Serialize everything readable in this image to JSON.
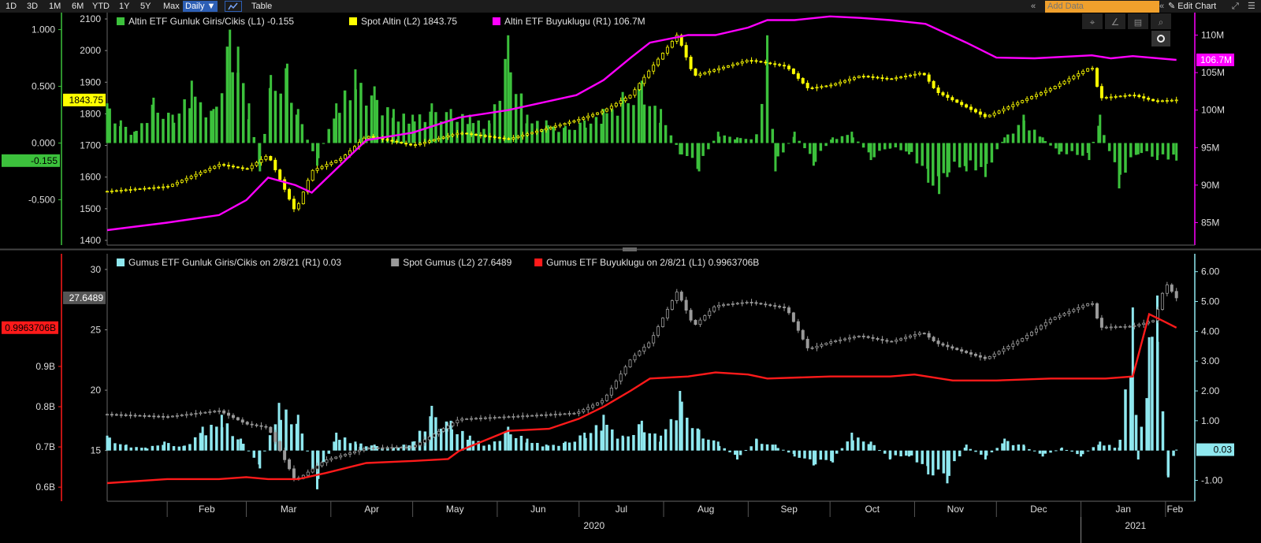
{
  "toolbar": {
    "periods": [
      "1D",
      "3D",
      "1M",
      "6M",
      "YTD",
      "1Y",
      "5Y",
      "Max"
    ],
    "frequency": "Daily ▼",
    "table_label": "Table",
    "add_data_placeholder": "Add Data",
    "edit_chart_label": "Edit Chart"
  },
  "colors": {
    "gold_flows": "#3cc13c",
    "spot_gold": "#ffff00",
    "gold_etf_size": "#ff00ff",
    "silver_flows": "#8fe8ef",
    "spot_silver": "#9a9a9a",
    "silver_etf_size": "#ff1a1a"
  },
  "chart_data": [
    {
      "type": "bar+candlestick+line",
      "panel": "top",
      "legend": [
        {
          "label": "Altin ETF Gunluk Giris/Cikis (L1) -0.155",
          "color": "#3cc13c"
        },
        {
          "label": "Spot Altin (L2) 1843.75",
          "color": "#ffff00"
        },
        {
          "label": "Altin ETF Buyuklugu (R1) 106.7M",
          "color": "#ff00ff"
        }
      ],
      "axes": {
        "L1": {
          "ticks": [
            "1.000",
            "0.500",
            "0.000",
            "-0.500"
          ],
          "range": [
            -0.9,
            1.15
          ],
          "last_label": "-0.155"
        },
        "L2": {
          "ticks": [
            "2100",
            "2000",
            "1900",
            "1800",
            "1700",
            "1600",
            "1500",
            "1400"
          ],
          "range": [
            1385,
            2120
          ],
          "last_label": "1843.75"
        },
        "R1": {
          "ticks": [
            "110M",
            "105M",
            "100M",
            "95M",
            "90M",
            "85M"
          ],
          "range": [
            82,
            113
          ],
          "last_label": "106.7M"
        }
      },
      "series": [
        {
          "name": "Spot Altin",
          "kind": "candlestick",
          "axis": "L2",
          "x": [
            "2020-01-10",
            "2020-02-01",
            "2020-02-20",
            "2020-03-01",
            "2020-03-09",
            "2020-03-19",
            "2020-03-25",
            "2020-04-05",
            "2020-04-14",
            "2020-05-01",
            "2020-05-18",
            "2020-06-05",
            "2020-06-30",
            "2020-07-10",
            "2020-07-20",
            "2020-07-27",
            "2020-08-06",
            "2020-08-12",
            "2020-08-20",
            "2020-09-01",
            "2020-09-15",
            "2020-09-23",
            "2020-10-01",
            "2020-10-12",
            "2020-10-23",
            "2020-11-04",
            "2020-11-09",
            "2020-11-27",
            "2020-12-10",
            "2020-12-21",
            "2021-01-05",
            "2021-01-08",
            "2021-01-20",
            "2021-01-28",
            "2021-02-05"
          ],
          "values": [
            1555,
            1570,
            1640,
            1625,
            1670,
            1490,
            1620,
            1660,
            1730,
            1700,
            1740,
            1720,
            1780,
            1810,
            1860,
            1940,
            2050,
            1920,
            1940,
            1970,
            1950,
            1880,
            1890,
            1920,
            1910,
            1930,
            1870,
            1790,
            1840,
            1880,
            1950,
            1850,
            1860,
            1840,
            1843.75
          ]
        },
        {
          "name": "Altin ETF Buyuklugu",
          "kind": "line",
          "axis": "R1",
          "x": [
            "2020-01-10",
            "2020-02-01",
            "2020-02-20",
            "2020-03-01",
            "2020-03-09",
            "2020-03-19",
            "2020-03-25",
            "2020-04-14",
            "2020-05-01",
            "2020-05-18",
            "2020-06-05",
            "2020-06-30",
            "2020-07-10",
            "2020-07-20",
            "2020-07-27",
            "2020-08-10",
            "2020-08-20",
            "2020-09-01",
            "2020-09-08",
            "2020-09-18",
            "2020-10-01",
            "2020-10-12",
            "2020-10-23",
            "2020-11-05",
            "2020-11-20",
            "2020-12-01",
            "2020-12-15",
            "2021-01-05",
            "2021-01-12",
            "2021-01-20",
            "2021-02-05"
          ],
          "values": [
            84,
            85,
            86,
            88,
            91,
            90,
            89,
            96,
            97,
            99,
            100,
            102,
            104,
            107,
            109,
            110,
            110,
            111,
            112,
            112,
            112.5,
            112.3,
            112,
            111.5,
            109,
            107,
            106.9,
            107.3,
            106.9,
            107.2,
            106.7
          ]
        },
        {
          "name": "Altin ETF Gunluk Giris/Cikis",
          "kind": "bar",
          "axis": "L1",
          "x": [
            "2020-01-10",
            "2020-01-15",
            "2020-01-20",
            "2020-01-27",
            "2020-02-03",
            "2020-02-10",
            "2020-02-18",
            "2020-02-24",
            "2020-02-27",
            "2020-03-02",
            "2020-03-06",
            "2020-03-10",
            "2020-03-16",
            "2020-03-20",
            "2020-03-27",
            "2020-04-03",
            "2020-04-10",
            "2020-04-17",
            "2020-04-24",
            "2020-05-01",
            "2020-05-08",
            "2020-05-15",
            "2020-05-22",
            "2020-05-29",
            "2020-06-05",
            "2020-06-12",
            "2020-06-19",
            "2020-06-26",
            "2020-07-03",
            "2020-07-10",
            "2020-07-17",
            "2020-07-24",
            "2020-07-31",
            "2020-08-07",
            "2020-08-14",
            "2020-08-21",
            "2020-08-28",
            "2020-09-04",
            "2020-09-08",
            "2020-09-11",
            "2020-09-18",
            "2020-09-25",
            "2020-10-02",
            "2020-10-09",
            "2020-10-16",
            "2020-10-23",
            "2020-10-30",
            "2020-11-06",
            "2020-11-10",
            "2020-11-13",
            "2020-11-20",
            "2020-11-27",
            "2020-12-04",
            "2020-12-11",
            "2020-12-18",
            "2020-12-24",
            "2021-01-04",
            "2021-01-08",
            "2021-01-15",
            "2021-01-22",
            "2021-01-29",
            "2021-02-05"
          ],
          "values": [
            0.35,
            0.2,
            0.1,
            0.4,
            0.25,
            0.55,
            0.3,
            1.0,
            0.85,
            0.35,
            -0.25,
            0.6,
            0.7,
            0.3,
            -0.2,
            0.35,
            0.65,
            0.5,
            0.3,
            0.25,
            0.35,
            0.3,
            0.25,
            0.2,
            0.95,
            0.25,
            0.2,
            0.15,
            0.2,
            0.3,
            0.45,
            0.55,
            0.3,
            -0.1,
            -0.25,
            0.1,
            0.05,
            0.05,
            0.95,
            -0.25,
            0.1,
            -0.2,
            0.05,
            0.1,
            -0.15,
            -0.05,
            -0.1,
            -0.35,
            -0.45,
            -0.3,
            -0.25,
            -0.3,
            0.05,
            0.25,
            0.05,
            -0.1,
            -0.15,
            0.25,
            -0.4,
            -0.1,
            -0.15,
            -0.155
          ]
        }
      ]
    },
    {
      "type": "bar+candlestick+line",
      "panel": "bottom",
      "legend": [
        {
          "label": "Gumus ETF Gunluk Giris/Cikis on 2/8/21 (R1) 0.03",
          "color": "#8fe8ef"
        },
        {
          "label": "Spot Gumus (L2) 27.6489",
          "color": "#9a9a9a"
        },
        {
          "label": "Gumus ETF Buyuklugu on 2/8/21 (L1) 0.9963706B",
          "color": "#ff1a1a"
        }
      ],
      "axes": {
        "L1": {
          "ticks": [
            "0.9B",
            "0.8B",
            "0.7B",
            "0.6B"
          ],
          "range": [
            0.565,
            1.18
          ],
          "last_label": "0.9963706B"
        },
        "L2": {
          "ticks": [
            "30",
            "25",
            "20",
            "15"
          ],
          "range": [
            10.8,
            31.3
          ],
          "last_label": "27.6489"
        },
        "R1": {
          "ticks": [
            "6.00",
            "5.00",
            "4.00",
            "3.00",
            "2.00",
            "1.00",
            "-1.00"
          ],
          "range": [
            -1.7,
            6.6
          ],
          "last_label": "0.03"
        }
      },
      "series": [
        {
          "name": "Spot Gumus",
          "kind": "candlestick",
          "axis": "L2",
          "x": [
            "2020-01-10",
            "2020-02-01",
            "2020-02-20",
            "2020-03-01",
            "2020-03-09",
            "2020-03-19",
            "2020-03-30",
            "2020-04-14",
            "2020-05-01",
            "2020-05-18",
            "2020-06-05",
            "2020-06-30",
            "2020-07-10",
            "2020-07-20",
            "2020-07-27",
            "2020-08-06",
            "2020-08-12",
            "2020-08-20",
            "2020-09-01",
            "2020-09-15",
            "2020-09-23",
            "2020-10-01",
            "2020-10-12",
            "2020-10-23",
            "2020-11-04",
            "2020-11-09",
            "2020-11-27",
            "2020-12-10",
            "2020-12-21",
            "2021-01-05",
            "2021-01-08",
            "2021-01-20",
            "2021-01-28",
            "2021-02-01",
            "2021-02-05"
          ],
          "values": [
            18,
            17.8,
            18.3,
            17.2,
            16.9,
            12.5,
            14.2,
            15.2,
            15.3,
            17.6,
            17.8,
            18.1,
            19.2,
            22.6,
            24.0,
            28.2,
            25.3,
            27.0,
            27.3,
            26.8,
            23.4,
            24.0,
            24.5,
            24.0,
            24.8,
            23.9,
            22.6,
            24.2,
            25.9,
            27.3,
            25.2,
            25.3,
            25.8,
            28.9,
            27.6489
          ]
        },
        {
          "name": "Gumus ETF Buyuklugu",
          "kind": "line",
          "axis": "L1",
          "x": [
            "2020-01-10",
            "2020-02-01",
            "2020-02-20",
            "2020-03-01",
            "2020-03-09",
            "2020-03-20",
            "2020-03-30",
            "2020-04-14",
            "2020-05-01",
            "2020-05-14",
            "2020-05-18",
            "2020-06-05",
            "2020-06-20",
            "2020-07-01",
            "2020-07-10",
            "2020-07-20",
            "2020-07-27",
            "2020-08-10",
            "2020-08-20",
            "2020-09-01",
            "2020-09-08",
            "2020-10-01",
            "2020-10-23",
            "2020-11-01",
            "2020-11-15",
            "2020-12-01",
            "2020-12-21",
            "2021-01-10",
            "2021-01-20",
            "2021-01-26",
            "2021-02-01",
            "2021-02-05"
          ],
          "values": [
            0.61,
            0.62,
            0.62,
            0.625,
            0.62,
            0.62,
            0.635,
            0.66,
            0.665,
            0.67,
            0.69,
            0.74,
            0.745,
            0.77,
            0.8,
            0.84,
            0.87,
            0.875,
            0.885,
            0.88,
            0.87,
            0.875,
            0.875,
            0.88,
            0.865,
            0.865,
            0.87,
            0.87,
            0.875,
            1.03,
            1.01,
            0.9963706
          ]
        },
        {
          "name": "Gumus ETF Gunluk Giris/Cikis",
          "kind": "bar",
          "axis": "R1",
          "x": [
            "2020-01-10",
            "2020-01-17",
            "2020-01-24",
            "2020-01-31",
            "2020-02-07",
            "2020-02-14",
            "2020-02-21",
            "2020-02-28",
            "2020-03-06",
            "2020-03-13",
            "2020-03-20",
            "2020-03-27",
            "2020-04-03",
            "2020-04-10",
            "2020-04-17",
            "2020-04-24",
            "2020-05-01",
            "2020-05-08",
            "2020-05-15",
            "2020-05-22",
            "2020-05-29",
            "2020-06-05",
            "2020-06-12",
            "2020-06-19",
            "2020-06-26",
            "2020-07-03",
            "2020-07-10",
            "2020-07-17",
            "2020-07-24",
            "2020-07-31",
            "2020-08-07",
            "2020-08-14",
            "2020-08-21",
            "2020-08-28",
            "2020-09-04",
            "2020-09-11",
            "2020-09-18",
            "2020-09-25",
            "2020-10-02",
            "2020-10-09",
            "2020-10-16",
            "2020-10-23",
            "2020-10-30",
            "2020-11-06",
            "2020-11-13",
            "2020-11-20",
            "2020-11-27",
            "2020-12-04",
            "2020-12-11",
            "2020-12-18",
            "2020-12-25",
            "2021-01-01",
            "2021-01-08",
            "2021-01-15",
            "2021-01-20",
            "2021-01-22",
            "2021-01-26",
            "2021-01-29",
            "2021-02-02",
            "2021-02-05"
          ],
          "values": [
            0.5,
            0.2,
            0.1,
            0.3,
            0.15,
            0.8,
            1.2,
            0.4,
            -0.6,
            1.6,
            1.2,
            -1.3,
            0.6,
            0.3,
            0.2,
            0.1,
            0.3,
            1.5,
            1.0,
            0.5,
            0.2,
            0.8,
            0.4,
            0.2,
            0.3,
            0.6,
            1.2,
            0.5,
            1.0,
            0.5,
            2.0,
            0.7,
            0.3,
            -0.3,
            0.4,
            0.2,
            -0.2,
            -0.5,
            -0.4,
            0.6,
            0.3,
            -0.3,
            -0.2,
            -0.8,
            -1.1,
            0.2,
            -0.3,
            0.4,
            0.2,
            -0.2,
            0.1,
            -0.2,
            0.3,
            0.1,
            4.8,
            -0.3,
            3.8,
            5.2,
            -0.9,
            0.03
          ]
        }
      ]
    }
  ],
  "x_axis": {
    "months": [
      "Feb",
      "Mar",
      "Apr",
      "May",
      "Jun",
      "Jul",
      "Aug",
      "Sep",
      "Oct",
      "Nov",
      "Dec",
      "Jan",
      "Feb"
    ],
    "years": [
      "2020",
      "2021"
    ]
  }
}
